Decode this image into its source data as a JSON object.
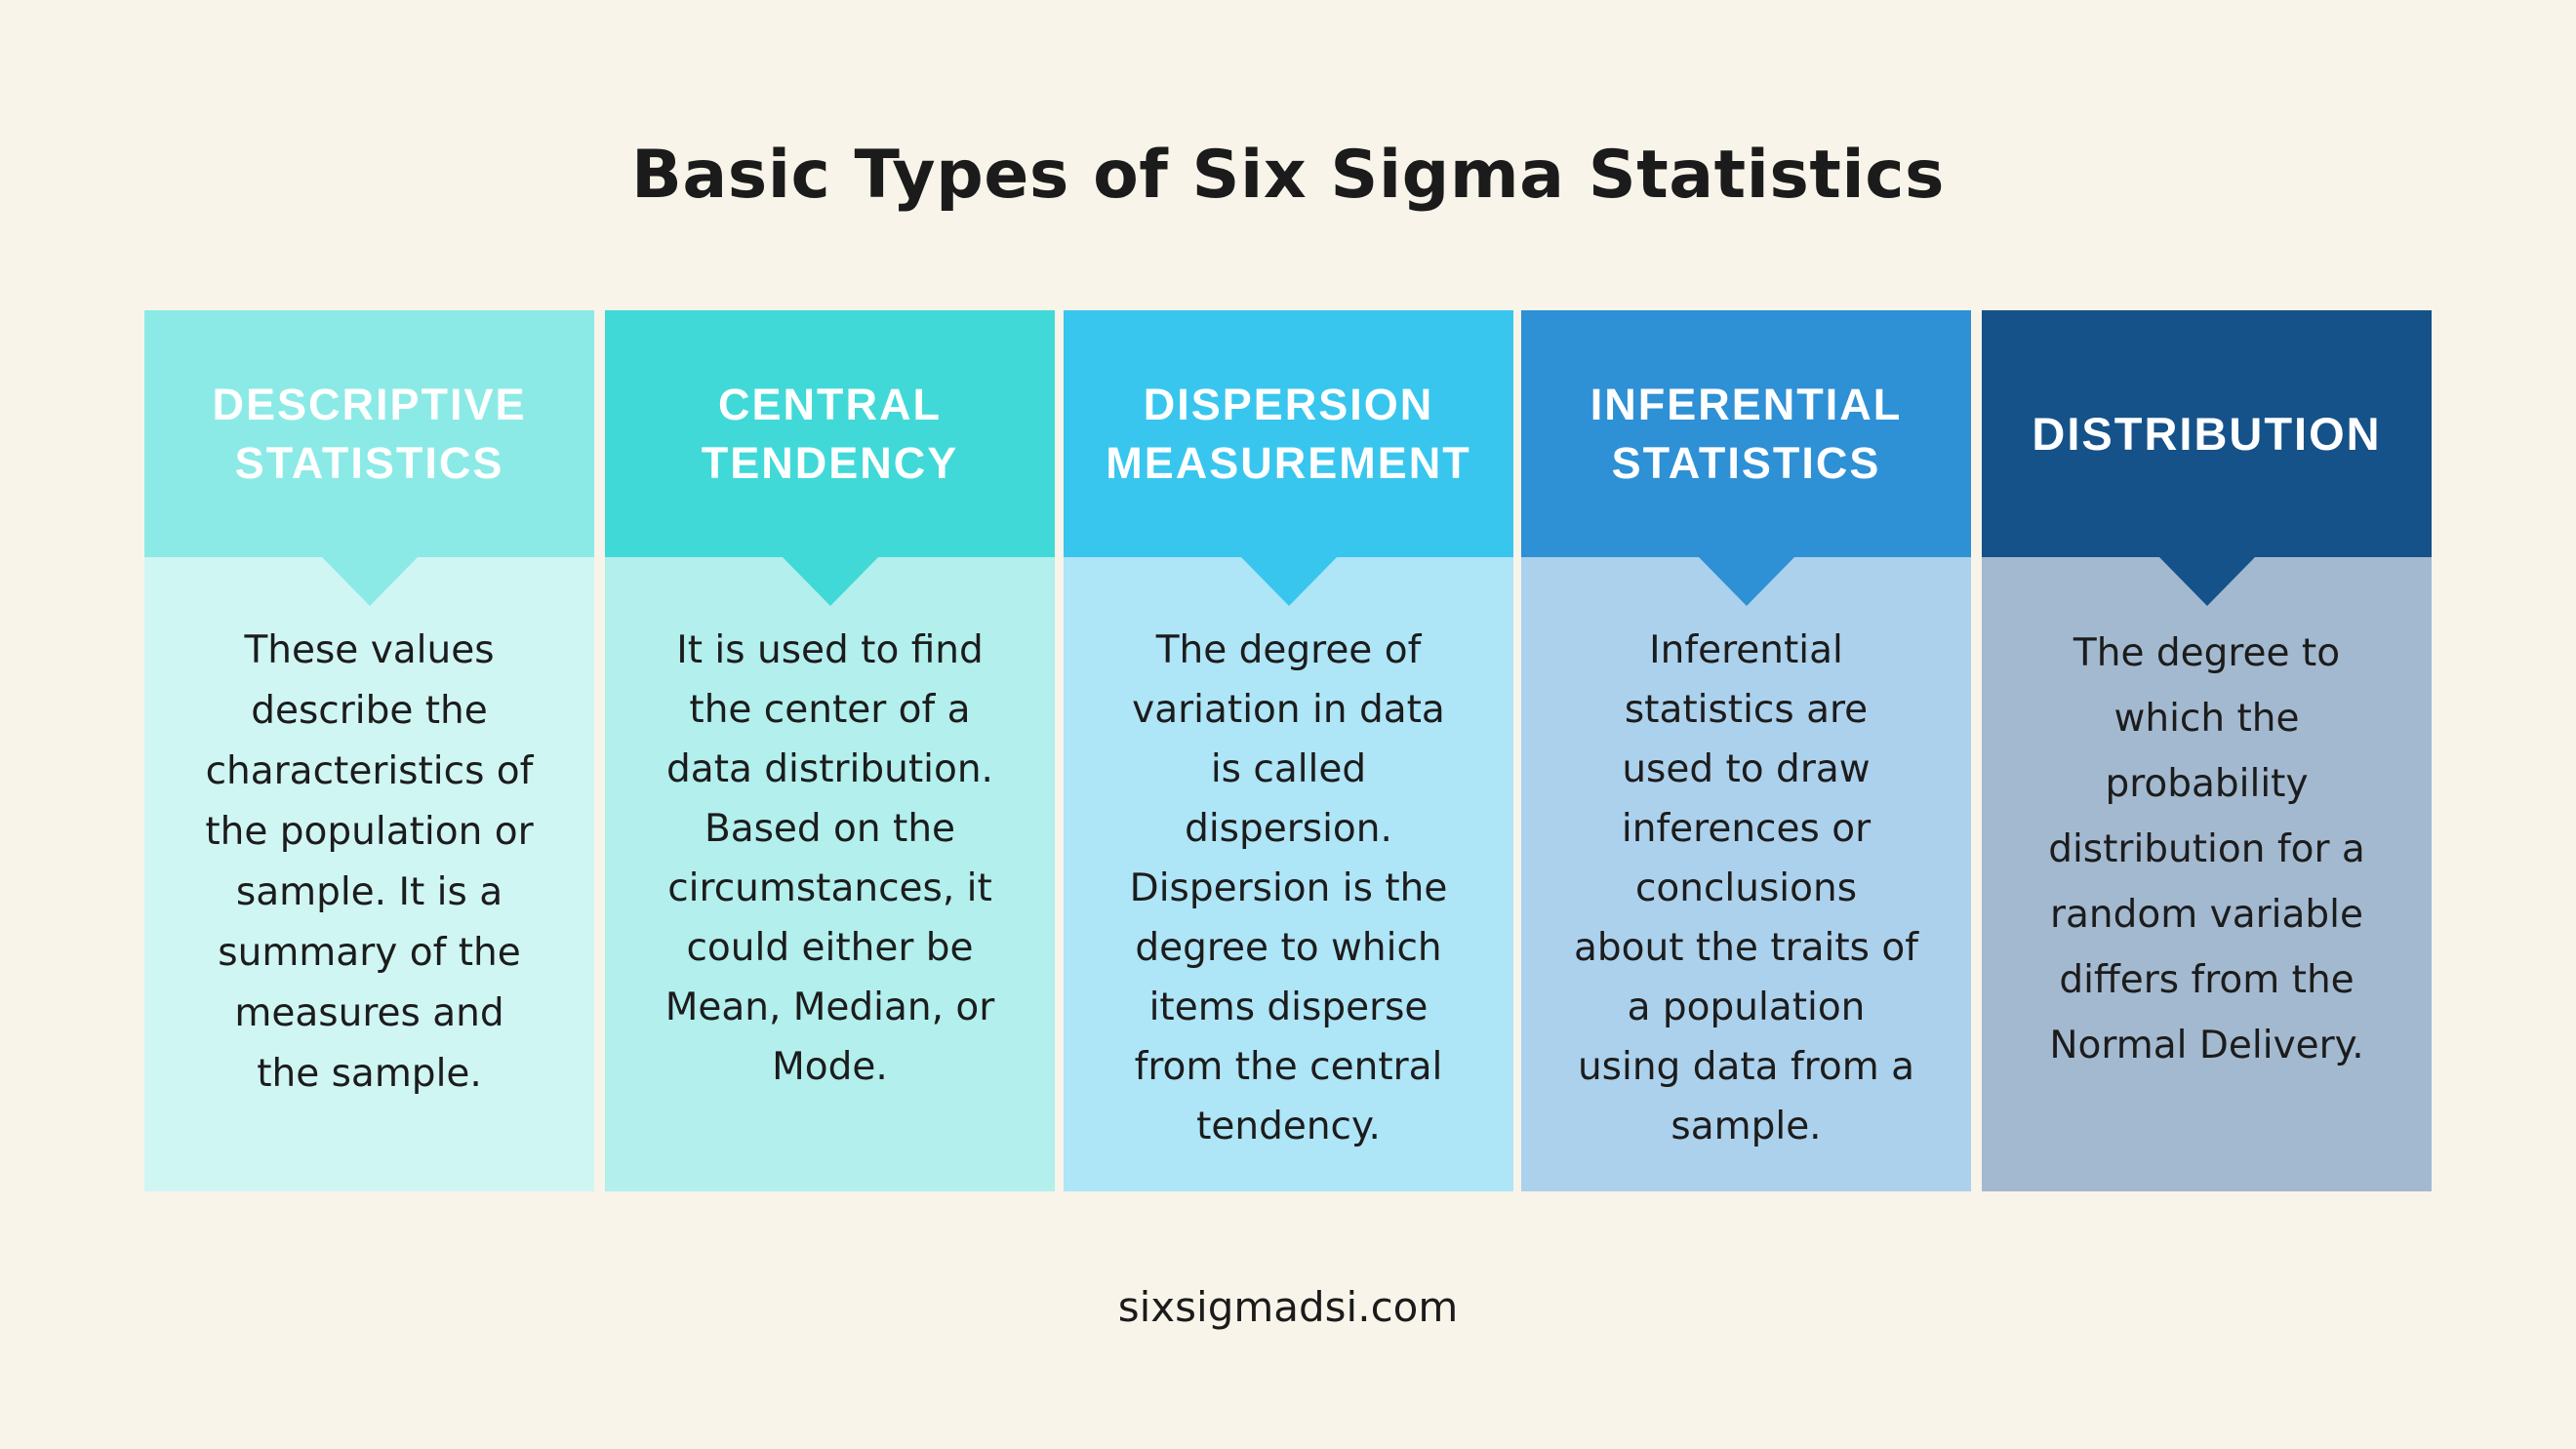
{
  "title": "Basic Types of Six Sigma Statistics",
  "footer": "sixsigmadsi.com",
  "columns": [
    {
      "header": [
        "DESCRIPTIVE",
        "STATISTICS"
      ],
      "header_color": "#8beae6",
      "body_color": "#d0f6f4",
      "body": [
        "These values",
        "describe the",
        "characteristics of",
        "the population or",
        "sample. It is a",
        "summary of the",
        "measures and",
        "the sample."
      ]
    },
    {
      "header": [
        "CENTRAL",
        "TENDENCY"
      ],
      "header_color": "#40d9d7",
      "body_color": "#b2efed",
      "body": [
        "It is used to find",
        "the center of a",
        "data distribution.",
        "Based on the",
        "circumstances, it",
        "could either be",
        "Mean, Median, or",
        "Mode."
      ]
    },
    {
      "header": [
        "DISPERSION",
        "MEASUREMENT"
      ],
      "header_color": "#38c6ee",
      "body_color": "#aee5f7",
      "body": [
        "The degree of",
        "variation in data",
        "is called",
        "dispersion.",
        "Dispersion is the",
        "degree to which",
        "items disperse",
        "from the central",
        "tendency."
      ]
    },
    {
      "header": [
        "INFERENTIAL",
        "STATISTICS"
      ],
      "header_color": "#2e90d5",
      "body_color": "#acd1ec",
      "body": [
        "Inferential",
        "statistics are",
        "used to draw",
        "inferences or",
        "conclusions",
        "about the traits of",
        "a population",
        "using data from a",
        "sample."
      ]
    },
    {
      "header": [
        "DISTRIBUTION"
      ],
      "header_color": "#155289",
      "body_color": "#a3b9d0",
      "body": [
        "The degree to",
        "which the",
        "probability",
        "distribution for a",
        "random variable",
        "differs from the",
        "Normal Delivery."
      ]
    }
  ]
}
